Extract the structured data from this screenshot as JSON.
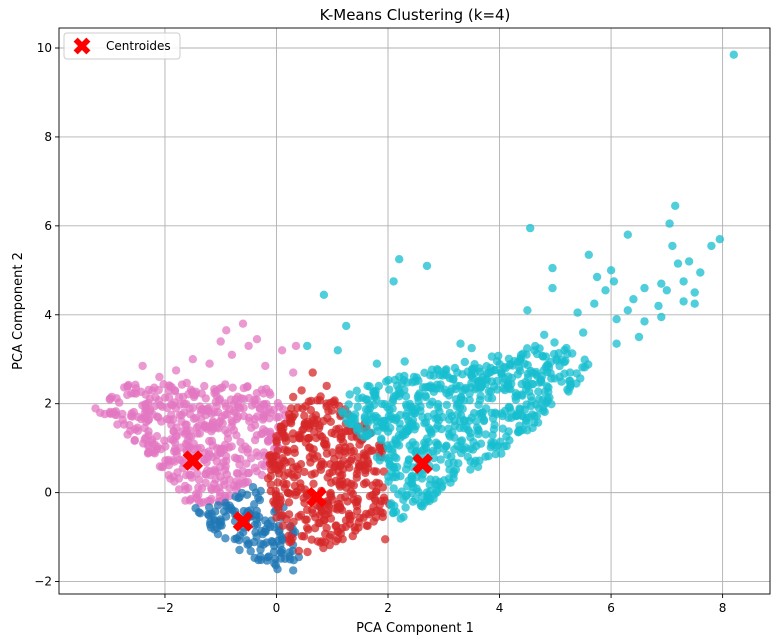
{
  "chart_data": {
    "type": "scatter",
    "title": "K-Means Clustering (k=4)",
    "xlabel": "PCA Component 1",
    "ylabel": "PCA Component 2",
    "xlim": [
      -3.9,
      8.85
    ],
    "ylim": [
      -2.28,
      10.45
    ],
    "xticks": [
      -2,
      0,
      2,
      4,
      6,
      8
    ],
    "xtick_labels": [
      "−2",
      "0",
      "2",
      "4",
      "6",
      "8"
    ],
    "yticks": [
      -2,
      0,
      2,
      4,
      6,
      8,
      10
    ],
    "ytick_labels": [
      "−2",
      "0",
      "2",
      "4",
      "6",
      "8",
      "10"
    ],
    "grid": true,
    "legend": {
      "placement": "top-left",
      "entries": [
        "Centroides"
      ]
    },
    "clusters": [
      {
        "color": "#e377c2",
        "region": [
          [
            -3.3,
            1.95
          ],
          [
            -3.0,
            2.45
          ],
          [
            -2.0,
            2.45
          ],
          [
            -1.0,
            2.5
          ],
          [
            0.0,
            2.3
          ],
          [
            0.2,
            1.6
          ],
          [
            0.0,
            0.6
          ],
          [
            -0.9,
            -0.2
          ],
          [
            -1.6,
            -0.25
          ],
          [
            -2.4,
            0.9
          ]
        ],
        "outliers": [
          [
            -0.6,
            3.8
          ],
          [
            -0.9,
            3.65
          ],
          [
            -0.35,
            3.45
          ],
          [
            0.35,
            3.3
          ],
          [
            -1.5,
            3.0
          ],
          [
            -2.4,
            2.85
          ],
          [
            -0.8,
            3.1
          ],
          [
            0.3,
            2.7
          ],
          [
            -1.2,
            2.9
          ],
          [
            -0.2,
            2.85
          ],
          [
            -1.8,
            2.75
          ],
          [
            0.1,
            3.2
          ],
          [
            -0.5,
            3.3
          ],
          [
            -2.1,
            2.6
          ],
          [
            -1.0,
            3.4
          ]
        ]
      },
      {
        "color": "#1f77b4",
        "region": [
          [
            -1.5,
            -0.4
          ],
          [
            -0.9,
            -0.2
          ],
          [
            -0.4,
            0.15
          ],
          [
            0.15,
            -0.35
          ],
          [
            0.45,
            -1.05
          ],
          [
            0.3,
            -1.55
          ],
          [
            0.05,
            -1.75
          ],
          [
            -0.5,
            -1.45
          ],
          [
            -1.2,
            -0.8
          ]
        ],
        "outliers": [
          [
            0.3,
            -1.75
          ],
          [
            0.4,
            -1.45
          ],
          [
            -1.45,
            -0.35
          ]
        ]
      },
      {
        "color": "#d62728",
        "region": [
          [
            -0.15,
            0.95
          ],
          [
            0.2,
            1.85
          ],
          [
            0.7,
            2.2
          ],
          [
            1.3,
            2.05
          ],
          [
            1.9,
            1.15
          ],
          [
            2.05,
            -0.45
          ],
          [
            1.3,
            -1.15
          ],
          [
            0.5,
            -1.45
          ],
          [
            0.1,
            -0.95
          ],
          [
            -0.2,
            0.2
          ]
        ],
        "outliers": [
          [
            0.65,
            2.7
          ],
          [
            0.9,
            2.4
          ],
          [
            0.45,
            2.3
          ],
          [
            1.95,
            -1.05
          ],
          [
            0.3,
            2.15
          ]
        ]
      },
      {
        "color": "#17becf",
        "region": [
          [
            1.1,
            1.85
          ],
          [
            1.35,
            2.3
          ],
          [
            2.4,
            2.7
          ],
          [
            3.5,
            3.0
          ],
          [
            4.5,
            3.3
          ],
          [
            5.3,
            3.45
          ],
          [
            5.6,
            2.9
          ],
          [
            5.3,
            2.2
          ],
          [
            4.0,
            0.8
          ],
          [
            3.2,
            0.3
          ],
          [
            2.6,
            -0.4
          ],
          [
            2.1,
            -0.65
          ],
          [
            1.9,
            0.6
          ]
        ],
        "outliers": [
          [
            8.2,
            9.85
          ],
          [
            4.55,
            5.95
          ],
          [
            7.15,
            6.45
          ],
          [
            7.05,
            6.05
          ],
          [
            7.95,
            5.7
          ],
          [
            7.8,
            5.55
          ],
          [
            7.1,
            5.55
          ],
          [
            6.3,
            5.8
          ],
          [
            6.0,
            5.0
          ],
          [
            5.6,
            5.35
          ],
          [
            7.2,
            5.15
          ],
          [
            7.4,
            5.2
          ],
          [
            7.6,
            4.95
          ],
          [
            6.9,
            4.7
          ],
          [
            6.6,
            4.6
          ],
          [
            7.0,
            4.55
          ],
          [
            7.3,
            4.3
          ],
          [
            7.5,
            4.5
          ],
          [
            7.5,
            4.25
          ],
          [
            6.85,
            4.2
          ],
          [
            6.3,
            4.1
          ],
          [
            5.9,
            4.55
          ],
          [
            5.7,
            4.25
          ],
          [
            5.4,
            4.05
          ],
          [
            4.95,
            4.6
          ],
          [
            4.5,
            4.1
          ],
          [
            4.95,
            5.05
          ],
          [
            2.2,
            5.25
          ],
          [
            2.7,
            5.1
          ],
          [
            2.1,
            4.75
          ],
          [
            0.85,
            4.45
          ],
          [
            1.25,
            3.75
          ],
          [
            3.5,
            3.25
          ],
          [
            3.3,
            3.35
          ],
          [
            4.8,
            3.55
          ],
          [
            5.5,
            3.6
          ],
          [
            6.1,
            3.35
          ],
          [
            6.1,
            3.9
          ],
          [
            6.6,
            3.85
          ],
          [
            6.9,
            3.95
          ],
          [
            6.5,
            3.5
          ],
          [
            7.3,
            4.75
          ],
          [
            1.1,
            3.2
          ],
          [
            0.55,
            3.3
          ],
          [
            2.3,
            2.95
          ],
          [
            1.8,
            2.9
          ],
          [
            2.9,
            2.75
          ],
          [
            6.05,
            4.75
          ],
          [
            6.4,
            4.35
          ],
          [
            5.75,
            4.85
          ]
        ]
      }
    ],
    "centroids": {
      "name": "Centroides",
      "color": "#ff0000",
      "points": [
        [
          -1.5,
          0.72
        ],
        [
          -0.6,
          -0.65
        ],
        [
          0.72,
          -0.1
        ],
        [
          2.62,
          0.65
        ]
      ]
    }
  }
}
